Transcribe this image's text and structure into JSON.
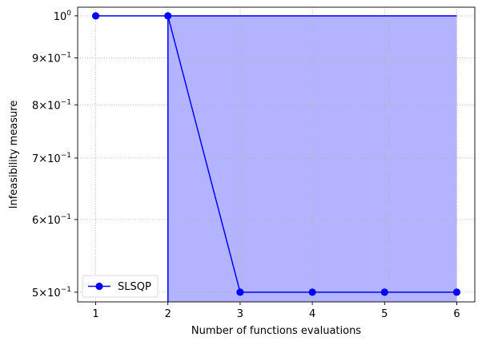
{
  "chart_data": {
    "type": "line",
    "xlabel": "Number of functions evaluations",
    "ylabel": "Infeasibility measure",
    "yscale": "log",
    "xlim": [
      0.75,
      6.25
    ],
    "ylim": [
      0.488,
      1.022
    ],
    "grid": true,
    "legend_position": "lower-left",
    "x_ticks": [
      1,
      2,
      3,
      4,
      5,
      6
    ],
    "x_tick_labels": [
      "1",
      "2",
      "3",
      "4",
      "5",
      "6"
    ],
    "y_ticks": [
      0.5,
      0.6,
      0.7,
      0.8,
      0.9,
      1.0
    ],
    "y_tick_labels": [
      {
        "mant": "5",
        "times": "×",
        "base": "10",
        "exp": "−1"
      },
      {
        "mant": "6",
        "times": "×",
        "base": "10",
        "exp": "−1"
      },
      {
        "mant": "7",
        "times": "×",
        "base": "10",
        "exp": "−1"
      },
      {
        "mant": "8",
        "times": "×",
        "base": "10",
        "exp": "−1"
      },
      {
        "mant": "9",
        "times": "×",
        "base": "10",
        "exp": "−1"
      },
      {
        "mant": "",
        "times": "",
        "base": "10",
        "exp": "0"
      }
    ],
    "series": [
      {
        "name": "SLSQP",
        "color": "#0000ff",
        "marker": "circle",
        "x": [
          1,
          2,
          3,
          4,
          5,
          6
        ],
        "y": [
          1.0,
          1.0,
          0.5,
          0.5,
          0.5,
          0.5
        ]
      }
    ],
    "band": {
      "x_start": 2,
      "x_end": 6,
      "y_top": 1.0,
      "color": "#b3b3ff"
    }
  }
}
